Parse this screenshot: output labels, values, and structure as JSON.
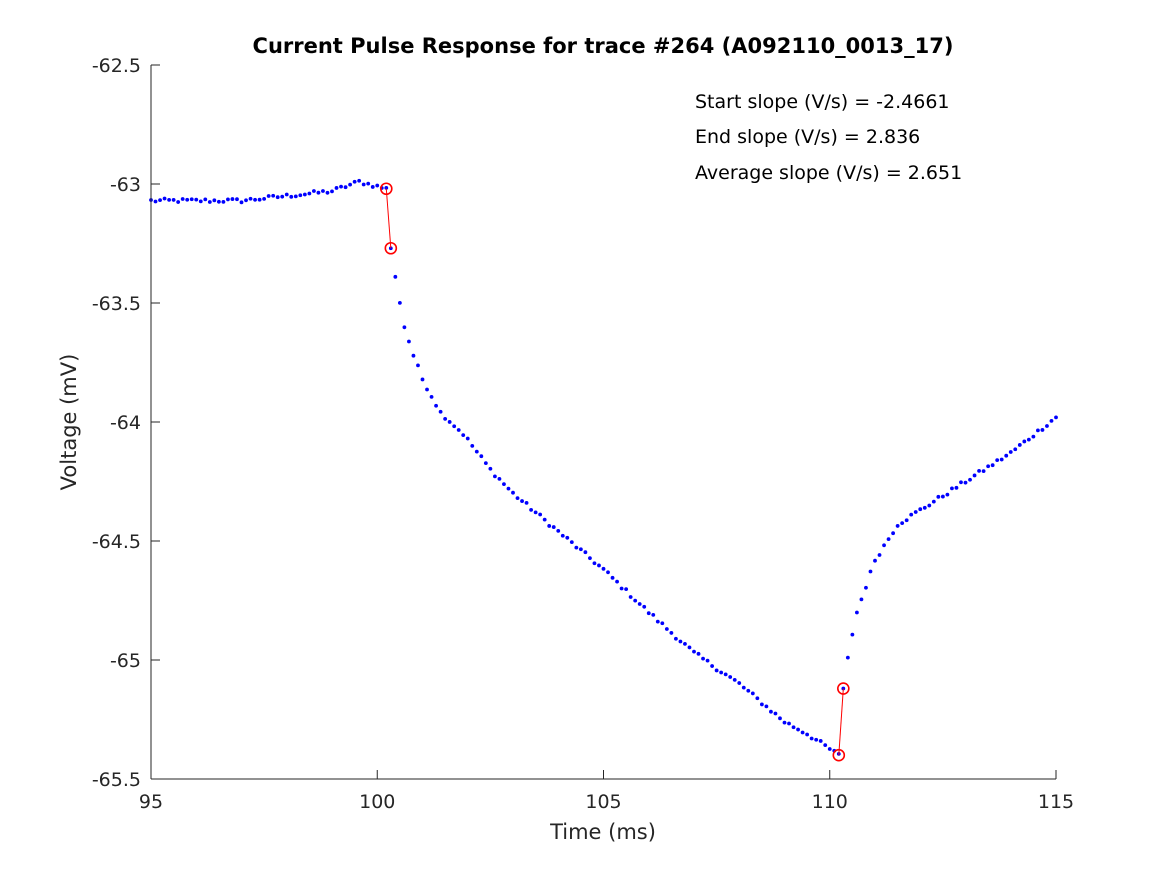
{
  "chart_data": {
    "type": "scatter",
    "title": "Current Pulse Response for trace #264 (A092110_0013_17)",
    "xlabel": "Time (ms)",
    "ylabel": "Voltage (mV)",
    "xlim": [
      95,
      115
    ],
    "ylim": [
      -65.5,
      -62.5
    ],
    "xticks": [
      "95",
      "100",
      "105",
      "110",
      "115"
    ],
    "yticks": [
      "-62.5",
      "-63",
      "-63.5",
      "-64",
      "-64.5",
      "-65",
      "-65.5"
    ],
    "grid": false,
    "point_color": "#0000ff",
    "marker_color": "#ff0000",
    "annotations": [
      "Start slope (V/s) = -2.4661",
      "End slope (V/s) = 2.836",
      "Average slope (V/s) = 2.651"
    ],
    "start_markers": [
      [
        100.2,
        -63.02
      ],
      [
        100.3,
        -63.27
      ]
    ],
    "end_markers": [
      [
        110.2,
        -65.4
      ],
      [
        110.3,
        -65.12
      ]
    ],
    "keypoints": [
      [
        95.0,
        -63.07
      ],
      [
        97.0,
        -63.07
      ],
      [
        99.0,
        -63.03
      ],
      [
        99.6,
        -62.99
      ],
      [
        100.2,
        -63.02
      ],
      [
        100.3,
        -63.27
      ],
      [
        100.4,
        -63.39
      ],
      [
        100.6,
        -63.6
      ],
      [
        100.8,
        -63.72
      ],
      [
        101.0,
        -63.82
      ],
      [
        101.4,
        -63.96
      ],
      [
        101.9,
        -64.05
      ],
      [
        102.5,
        -64.2
      ],
      [
        103.0,
        -64.3
      ],
      [
        104.0,
        -64.46
      ],
      [
        105.0,
        -64.62
      ],
      [
        106.0,
        -64.8
      ],
      [
        107.0,
        -64.97
      ],
      [
        108.0,
        -65.1
      ],
      [
        109.0,
        -65.26
      ],
      [
        109.5,
        -65.31
      ],
      [
        110.2,
        -65.4
      ],
      [
        110.3,
        -65.12
      ],
      [
        110.4,
        -64.99
      ],
      [
        110.5,
        -64.89
      ],
      [
        110.6,
        -64.8
      ],
      [
        111.0,
        -64.58
      ],
      [
        111.5,
        -64.43
      ],
      [
        112.0,
        -64.37
      ],
      [
        113.0,
        -64.25
      ],
      [
        114.0,
        -64.13
      ],
      [
        115.0,
        -63.98
      ]
    ]
  }
}
